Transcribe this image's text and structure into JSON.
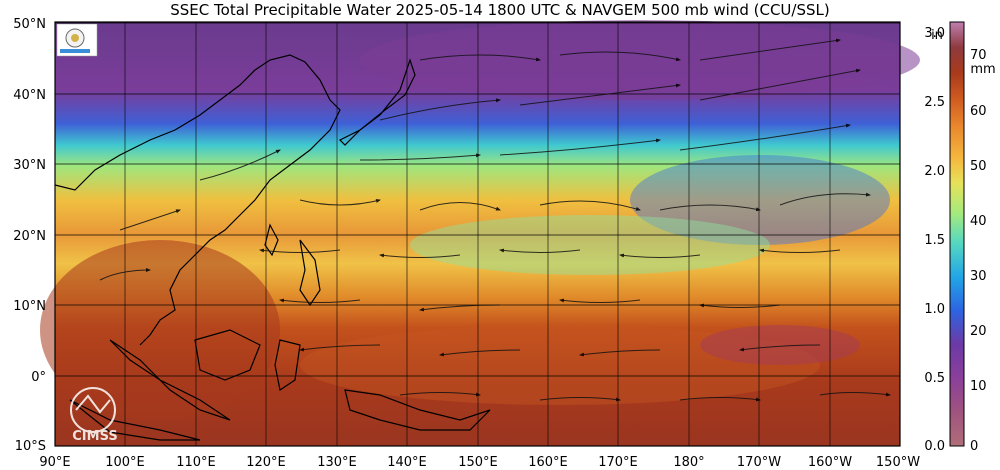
{
  "title": "SSEC Total Precipitable Water  2025-05-14 1800 UTC & NAVGEM 500 mb wind (CCU/SSL)",
  "lat_labels": [
    "50°N",
    "40°N",
    "30°N",
    "20°N",
    "10°N",
    "0°",
    "10°S"
  ],
  "lon_labels": [
    "90°E",
    "100°E",
    "110°E",
    "120°E",
    "130°E",
    "140°E",
    "150°E",
    "160°E",
    "170°E",
    "180°",
    "170°W",
    "160°W",
    "150°W"
  ],
  "colorbar": {
    "unit_in": "in",
    "unit_mm": "mm",
    "in_ticks": [
      "3.0",
      "2.5",
      "2.0",
      "1.5",
      "1.0",
      "0.5",
      "0.0"
    ],
    "mm_ticks": [
      "70",
      "60",
      "50",
      "40",
      "30",
      "20",
      "10",
      "0"
    ],
    "colors": [
      "#b57ba8",
      "#8e3fa0",
      "#6a32a8",
      "#3d5ed8",
      "#1f9fe0",
      "#44d0c8",
      "#8fe89a",
      "#d6e860",
      "#f3c145",
      "#ef9a33",
      "#d9601f",
      "#b33a1a",
      "#8c2a22",
      "#9a3a5a",
      "#b85c8c",
      "#d98bb8"
    ]
  },
  "logo_text": "CIMSS",
  "wind_map_colors": {
    "land_edge": "#000000",
    "dry_north": "#6b3a8f",
    "moist_south": "#b8431c"
  }
}
